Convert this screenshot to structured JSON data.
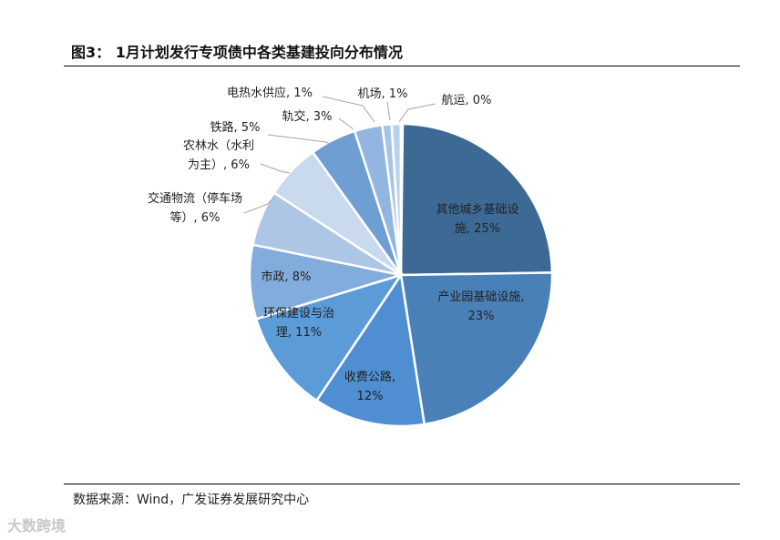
{
  "page": {
    "title": "图3：  1月计划发行专项债中各类基建投向分布情况",
    "source": "数据来源：Wind，广发证券发展研究中心",
    "watermark": "大数跨境"
  },
  "chart_data": {
    "type": "pie",
    "title": "",
    "slices": [
      {
        "label": "其他城乡基础设施",
        "value": 25,
        "color": "#3d6a95",
        "label_lines": [
          "其他城乡基础设",
          "施, 25%"
        ]
      },
      {
        "label": "产业园基础设施",
        "value": 23,
        "color": "#4a80b8",
        "label_lines": [
          "产业园基础设施,",
          "23%"
        ]
      },
      {
        "label": "收费公路",
        "value": 12,
        "color": "#4f8ed0",
        "label_lines": [
          "收费公路,",
          "12%"
        ]
      },
      {
        "label": "环保建设与治理",
        "value": 11,
        "color": "#5b9bd8",
        "label_lines": [
          "环保建设与治",
          "理, 11%"
        ]
      },
      {
        "label": "市政",
        "value": 8,
        "color": "#82acdb",
        "label_lines": [
          "市政, 8%"
        ]
      },
      {
        "label": "交通物流（停车场等）",
        "value": 6,
        "color": "#adc6e6",
        "label_lines": [
          "交通物流（停车场",
          "等）, 6%"
        ]
      },
      {
        "label": "农林水（水利为主）",
        "value": 6,
        "color": "#c9d9ee",
        "label_lines": [
          "农林水（水利",
          "为主）, 6%"
        ]
      },
      {
        "label": "铁路",
        "value": 5,
        "color": "#6f9fd2",
        "label_lines": [
          "铁路, 5%"
        ]
      },
      {
        "label": "轨交",
        "value": 3,
        "color": "#92b6df",
        "label_lines": [
          "轨交, 3%"
        ]
      },
      {
        "label": "电热水供应",
        "value": 1,
        "color": "#a8c4e4",
        "label_lines": [
          "电热水供应, 1%"
        ]
      },
      {
        "label": "机场",
        "value": 1,
        "color": "#bcd1ea",
        "label_lines": [
          "机场, 1%"
        ]
      },
      {
        "label": "航运",
        "value": 0,
        "color": "#d5e2f2",
        "label_lines": [
          "航运, 0%"
        ]
      }
    ]
  }
}
